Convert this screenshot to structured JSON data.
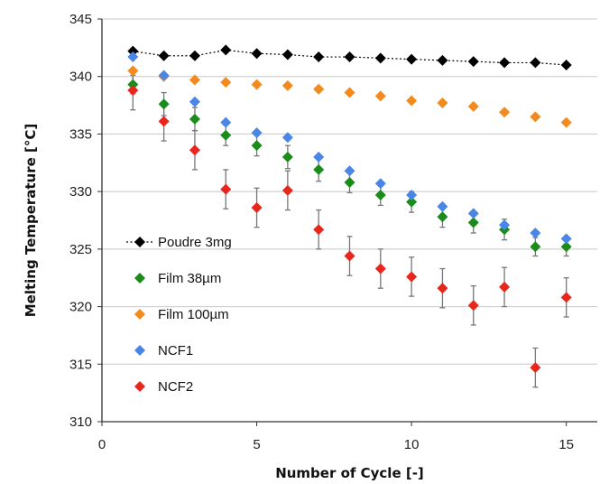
{
  "chart_data": {
    "type": "scatter",
    "title": "",
    "xlabel": "Number of Cycle [-]",
    "ylabel": "Melting Temperature [°C]",
    "xlim": [
      0,
      16
    ],
    "ylim": [
      310,
      345
    ],
    "xticks": [
      0,
      5,
      10,
      15
    ],
    "yticks": [
      310,
      315,
      320,
      325,
      330,
      335,
      340,
      345
    ],
    "grid": "horizontal",
    "legend_position": "lower-left",
    "series": [
      {
        "name": "Poudre 3mg",
        "color": "#000000",
        "line": "dotted",
        "x": [
          1,
          2,
          3,
          4,
          5,
          6,
          7,
          8,
          9,
          10,
          11,
          12,
          13,
          14,
          15
        ],
        "y": [
          342.2,
          341.8,
          341.8,
          342.3,
          342.0,
          341.9,
          341.7,
          341.7,
          341.6,
          341.5,
          341.4,
          341.3,
          341.2,
          341.2,
          341.0
        ]
      },
      {
        "name": "Film 38µm",
        "color": "#1a8c1a",
        "x": [
          1,
          2,
          3,
          4,
          5,
          6,
          7,
          8,
          9,
          10,
          11,
          12,
          13,
          14,
          15
        ],
        "y": [
          339.3,
          337.6,
          336.3,
          334.9,
          334.0,
          333.0,
          331.9,
          330.8,
          329.7,
          329.1,
          327.8,
          327.3,
          326.7,
          325.2,
          325.2
        ],
        "err": [
          0.8,
          1.0,
          1.0,
          0.9,
          0.9,
          1.0,
          1.0,
          0.9,
          0.9,
          0.9,
          0.9,
          0.9,
          0.9,
          0.8,
          0.8
        ]
      },
      {
        "name": "Film 100µm",
        "color": "#f28a1e",
        "x": [
          1,
          2,
          3,
          4,
          5,
          6,
          7,
          8,
          9,
          10,
          11,
          12,
          13,
          14,
          15
        ],
        "y": [
          340.5,
          340.0,
          339.7,
          339.5,
          339.3,
          339.2,
          338.9,
          338.6,
          338.3,
          337.9,
          337.7,
          337.4,
          336.9,
          336.5,
          336.0
        ]
      },
      {
        "name": "NCF1",
        "color": "#4a86e8",
        "x": [
          1,
          2,
          3,
          4,
          5,
          6,
          7,
          8,
          9,
          10,
          11,
          12,
          13,
          14,
          15
        ],
        "y": [
          341.7,
          340.1,
          337.8,
          336.0,
          335.1,
          334.7,
          333.0,
          331.8,
          330.7,
          329.7,
          328.7,
          328.1,
          327.1,
          326.4,
          325.9
        ]
      },
      {
        "name": "NCF2",
        "color": "#e8261c",
        "x": [
          1,
          2,
          3,
          4,
          5,
          6,
          7,
          8,
          9,
          10,
          11,
          12,
          13,
          14,
          15
        ],
        "y": [
          338.8,
          336.1,
          333.6,
          330.2,
          328.6,
          330.1,
          326.7,
          324.4,
          323.3,
          322.6,
          321.6,
          320.1,
          321.7,
          314.7,
          320.8
        ],
        "err": [
          1.7,
          1.7,
          1.7,
          1.7,
          1.7,
          1.7,
          1.7,
          1.7,
          1.7,
          1.7,
          1.7,
          1.7,
          1.7,
          1.7,
          1.7
        ]
      }
    ]
  }
}
